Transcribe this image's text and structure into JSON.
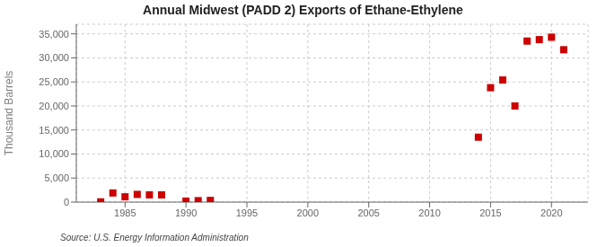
{
  "chart_data": {
    "type": "scatter",
    "title": "Annual Midwest (PADD 2) Exports of Ethane-Ethylene",
    "ylabel": "Thousand Barrels",
    "annotations": [
      "Source: U.S. Energy Information Administration"
    ],
    "x": [
      1983,
      1984,
      1985,
      1986,
      1987,
      1988,
      1990,
      1991,
      1992,
      2014,
      2015,
      2016,
      2017,
      2018,
      2019,
      2020,
      2021
    ],
    "values": [
      50,
      1900,
      1100,
      1600,
      1500,
      1500,
      200,
      300,
      350,
      13500,
      23800,
      25400,
      20000,
      33500,
      33800,
      34300,
      31700
    ],
    "color": "#cc0000",
    "marker": "square",
    "xlim": [
      1981,
      2023
    ],
    "ylim": [
      0,
      37000
    ],
    "xticks": [
      1985,
      1990,
      1995,
      2000,
      2005,
      2010,
      2015,
      2020
    ],
    "yticks": [
      0,
      {
        "value": 5000,
        "label": "5,000"
      },
      {
        "value": 10000,
        "label": "10,000"
      },
      {
        "value": 15000,
        "label": "15,000"
      },
      {
        "value": 20000,
        "label": "20,000"
      },
      {
        "value": 25000,
        "label": "25,000"
      },
      {
        "value": 30000,
        "label": "30,000"
      },
      {
        "value": 35000,
        "label": "35,000"
      }
    ],
    "grid": true
  }
}
